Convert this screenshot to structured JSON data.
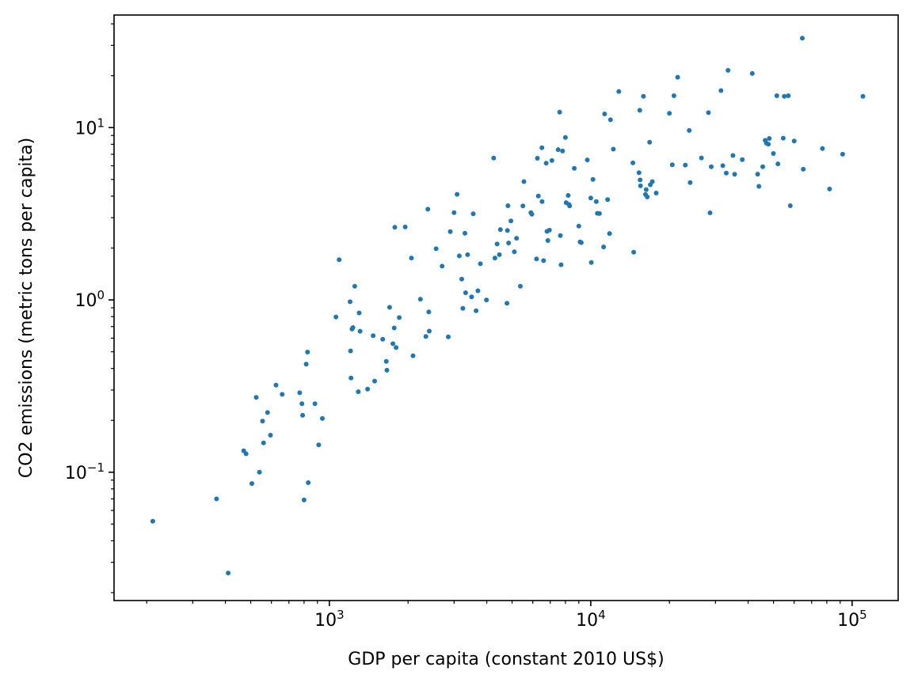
{
  "chart_data": {
    "type": "scatter",
    "title": "",
    "xlabel": "GDP per capita (constant 2010 US$)",
    "ylabel": "CO2 emissions (metric tons per capita)",
    "xscale": "log",
    "yscale": "log",
    "xlim": [
      150,
      150000
    ],
    "ylim": [
      0.018,
      45
    ],
    "xticks": [
      {
        "value": 1000,
        "base": "10",
        "exp": "3"
      },
      {
        "value": 10000,
        "base": "10",
        "exp": "4"
      },
      {
        "value": 100000,
        "base": "10",
        "exp": "5"
      }
    ],
    "yticks": [
      {
        "value": 0.1,
        "base": "10",
        "exp": "−1"
      },
      {
        "value": 1,
        "base": "10",
        "exp": "0"
      },
      {
        "value": 10,
        "base": "10",
        "exp": "1"
      }
    ],
    "marker_color": "#1f77b4",
    "grid": false,
    "points": [
      [
        211,
        0.052
      ],
      [
        370,
        0.07
      ],
      [
        410,
        0.026
      ],
      [
        470,
        0.133
      ],
      [
        480,
        0.128
      ],
      [
        505,
        0.086
      ],
      [
        525,
        0.272
      ],
      [
        540,
        0.1
      ],
      [
        555,
        0.198
      ],
      [
        560,
        0.148
      ],
      [
        580,
        0.222
      ],
      [
        595,
        0.164
      ],
      [
        625,
        0.32
      ],
      [
        660,
        0.283
      ],
      [
        770,
        0.289
      ],
      [
        785,
        0.25
      ],
      [
        790,
        0.214
      ],
      [
        800,
        0.069
      ],
      [
        815,
        0.424
      ],
      [
        825,
        0.498
      ],
      [
        830,
        0.087
      ],
      [
        880,
        0.25
      ],
      [
        910,
        0.144
      ],
      [
        940,
        0.205
      ],
      [
        1060,
        0.796
      ],
      [
        1090,
        1.71
      ],
      [
        1200,
        0.975
      ],
      [
        1205,
        0.506
      ],
      [
        1210,
        0.352
      ],
      [
        1220,
        0.677
      ],
      [
        1230,
        0.691
      ],
      [
        1250,
        1.2
      ],
      [
        1290,
        0.293
      ],
      [
        1300,
        0.84
      ],
      [
        1310,
        0.658
      ],
      [
        1400,
        0.304
      ],
      [
        1470,
        0.62
      ],
      [
        1490,
        0.338
      ],
      [
        1600,
        0.591
      ],
      [
        1650,
        0.44
      ],
      [
        1660,
        0.391
      ],
      [
        1700,
        0.906
      ],
      [
        1750,
        0.557
      ],
      [
        1770,
        0.687
      ],
      [
        1780,
        2.64
      ],
      [
        1800,
        0.529
      ],
      [
        1850,
        0.789
      ],
      [
        1950,
        2.65
      ],
      [
        2060,
        1.75
      ],
      [
        2090,
        0.474
      ],
      [
        2230,
        1.01
      ],
      [
        2340,
        0.613
      ],
      [
        2380,
        3.36
      ],
      [
        2400,
        0.852
      ],
      [
        2410,
        0.659
      ],
      [
        2560,
        1.98
      ],
      [
        2700,
        1.57
      ],
      [
        2850,
        0.61
      ],
      [
        2900,
        2.49
      ],
      [
        3000,
        3.21
      ],
      [
        3080,
        4.1
      ],
      [
        3140,
        1.8
      ],
      [
        3210,
        1.32
      ],
      [
        3240,
        0.892
      ],
      [
        3300,
        2.44
      ],
      [
        3320,
        1.1
      ],
      [
        3380,
        1.83
      ],
      [
        3500,
        1.04
      ],
      [
        3550,
        3.16
      ],
      [
        3640,
        0.865
      ],
      [
        3700,
        1.13
      ],
      [
        3780,
        1.62
      ],
      [
        3990,
        0.999
      ],
      [
        4250,
        6.66
      ],
      [
        4300,
        1.75
      ],
      [
        4380,
        2.11
      ],
      [
        4470,
        1.83
      ],
      [
        4510,
        2.56
      ],
      [
        4780,
        0.956
      ],
      [
        4800,
        2.53
      ],
      [
        4820,
        3.52
      ],
      [
        4850,
        2.14
      ],
      [
        4950,
        2.87
      ],
      [
        5100,
        1.9
      ],
      [
        5200,
        2.28
      ],
      [
        5380,
        1.2
      ],
      [
        5500,
        3.51
      ],
      [
        5550,
        4.86
      ],
      [
        5900,
        3.21
      ],
      [
        5950,
        3.14
      ],
      [
        6200,
        1.73
      ],
      [
        6250,
        6.64
      ],
      [
        6300,
        4.01
      ],
      [
        6500,
        7.63
      ],
      [
        6510,
        3.72
      ],
      [
        6600,
        1.69
      ],
      [
        6750,
        6.21
      ],
      [
        6800,
        2.5
      ],
      [
        6850,
        2.21
      ],
      [
        6950,
        2.54
      ],
      [
        7100,
        6.44
      ],
      [
        7500,
        7.45
      ],
      [
        7600,
        12.3
      ],
      [
        7650,
        2.36
      ],
      [
        7700,
        1.6
      ],
      [
        7800,
        7.31
      ],
      [
        8000,
        8.77
      ],
      [
        8050,
        3.67
      ],
      [
        8200,
        4.04
      ],
      [
        8250,
        3.58
      ],
      [
        8300,
        3.51
      ],
      [
        8650,
        5.8
      ],
      [
        9000,
        2.68
      ],
      [
        9100,
        2.17
      ],
      [
        9200,
        2.15
      ],
      [
        9700,
        6.49
      ],
      [
        10000,
        3.9
      ],
      [
        10050,
        1.65
      ],
      [
        10200,
        5.0
      ],
      [
        10500,
        3.72
      ],
      [
        10600,
        3.18
      ],
      [
        10800,
        3.17
      ],
      [
        11200,
        2.03
      ],
      [
        11300,
        12.0
      ],
      [
        11600,
        3.82
      ],
      [
        11800,
        2.43
      ],
      [
        11900,
        11.1
      ],
      [
        12200,
        7.5
      ],
      [
        12800,
        16.2
      ],
      [
        14500,
        6.24
      ],
      [
        14600,
        1.89
      ],
      [
        15300,
        5.47
      ],
      [
        15400,
        12.6
      ],
      [
        15450,
        4.97
      ],
      [
        15500,
        4.59
      ],
      [
        15900,
        15.2
      ],
      [
        16200,
        4.09
      ],
      [
        16300,
        4.37
      ],
      [
        16450,
        3.96
      ],
      [
        16800,
        8.23
      ],
      [
        16900,
        4.66
      ],
      [
        17200,
        4.86
      ],
      [
        17800,
        4.17
      ],
      [
        20000,
        12.1
      ],
      [
        20500,
        6.08
      ],
      [
        20800,
        15.3
      ],
      [
        21500,
        19.6
      ],
      [
        23000,
        6.06
      ],
      [
        23800,
        9.62
      ],
      [
        24000,
        4.8
      ],
      [
        26500,
        6.67
      ],
      [
        28200,
        12.2
      ],
      [
        28600,
        3.2
      ],
      [
        28900,
        5.93
      ],
      [
        31500,
        16.4
      ],
      [
        32000,
        6.01
      ],
      [
        33000,
        5.45
      ],
      [
        33500,
        21.5
      ],
      [
        35000,
        6.89
      ],
      [
        35500,
        5.36
      ],
      [
        38000,
        6.52
      ],
      [
        41500,
        20.6
      ],
      [
        43500,
        5.37
      ],
      [
        44000,
        4.56
      ],
      [
        45500,
        5.93
      ],
      [
        46500,
        8.43
      ],
      [
        47000,
        8.12
      ],
      [
        47800,
        8.01
      ],
      [
        48200,
        8.65
      ],
      [
        50000,
        7.07
      ],
      [
        51500,
        15.3
      ],
      [
        52000,
        6.16
      ],
      [
        54500,
        8.68
      ],
      [
        55000,
        15.2
      ],
      [
        57000,
        15.3
      ],
      [
        58000,
        3.52
      ],
      [
        60000,
        8.36
      ],
      [
        64500,
        33.0
      ],
      [
        65000,
        5.73
      ],
      [
        77000,
        7.56
      ],
      [
        82000,
        4.4
      ],
      [
        92000,
        7.01
      ],
      [
        110000,
        15.2
      ]
    ]
  }
}
